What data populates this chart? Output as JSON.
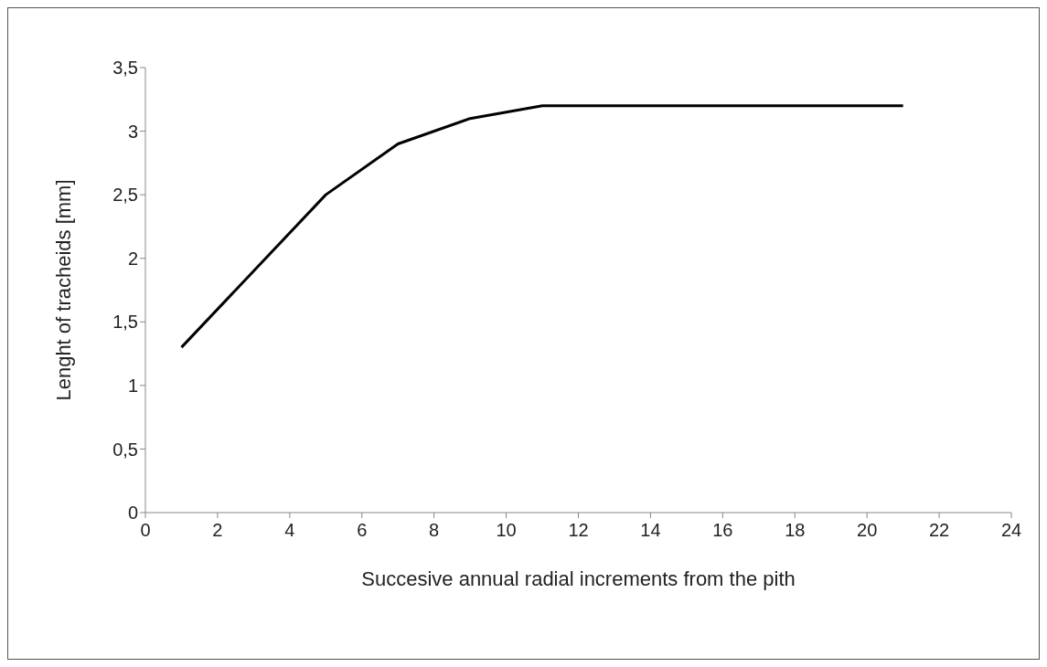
{
  "chart_data": {
    "type": "line",
    "xlabel": "Succesive annual radial increments from the pith",
    "ylabel": "Lenght of tracheids  [mm]",
    "x": [
      1,
      5,
      7,
      9,
      11,
      21
    ],
    "series": [
      {
        "color": "#000000",
        "values": [
          1.3,
          2.5,
          2.9,
          3.1,
          3.2,
          3.2
        ]
      }
    ],
    "xlim": [
      0,
      24
    ],
    "xticks": [
      0,
      2,
      4,
      6,
      8,
      10,
      12,
      14,
      16,
      18,
      20,
      22,
      24
    ],
    "ylim": [
      0,
      3.5
    ],
    "yticks": [
      0,
      {
        "value": 0.5,
        "label": "0,5"
      },
      1,
      {
        "value": 1.5,
        "label": "1,5"
      },
      2,
      {
        "value": 2.5,
        "label": "2,5"
      },
      3,
      {
        "value": 3.5,
        "label": "3,5"
      }
    ],
    "grid": false,
    "legend": false,
    "marker": "none",
    "line_style": "solid"
  }
}
